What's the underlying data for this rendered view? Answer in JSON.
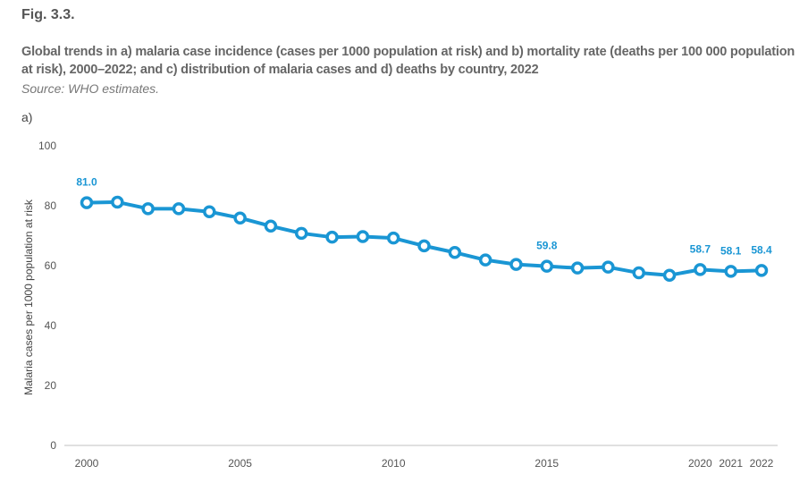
{
  "figure": {
    "label": "Fig. 3.3.",
    "title": "Global trends in a) malaria case incidence (cases per 1000 population at risk) and b) mortality rate (deaths per 100 000 population at risk), 2000–2022; and c) distribution of malaria cases and d) deaths by country, 2022",
    "source": "Source: WHO estimates.",
    "panel": "a)"
  },
  "colors": {
    "series": "#1a96d4",
    "axis": "#e0e0e0",
    "text": "#555555"
  },
  "chart_data": {
    "type": "line",
    "title": "",
    "xlabel": "",
    "ylabel": "Malaria cases per 1000 population at risk",
    "ylim": [
      0,
      100
    ],
    "yticks": [
      0,
      20,
      40,
      60,
      80,
      100
    ],
    "xticks": [
      2000,
      2005,
      2010,
      2015,
      2020,
      2021,
      2022
    ],
    "grid": false,
    "legend": "none",
    "x": [
      2000,
      2001,
      2002,
      2003,
      2004,
      2005,
      2006,
      2007,
      2008,
      2009,
      2010,
      2011,
      2012,
      2013,
      2014,
      2015,
      2016,
      2017,
      2018,
      2019,
      2020,
      2021,
      2022
    ],
    "series": [
      {
        "name": "Malaria case incidence",
        "values": [
          81.0,
          81.2,
          79.0,
          79.0,
          78.0,
          75.9,
          73.2,
          70.8,
          69.5,
          69.7,
          69.2,
          66.6,
          64.4,
          61.9,
          60.4,
          59.8,
          59.2,
          59.5,
          57.6,
          56.8,
          58.7,
          58.1,
          58.4
        ]
      }
    ],
    "annotations": [
      {
        "x": 2000,
        "label": "81.0"
      },
      {
        "x": 2015,
        "label": "59.8"
      },
      {
        "x": 2020,
        "label": "58.7"
      },
      {
        "x": 2021,
        "label": "58.1"
      },
      {
        "x": 2022,
        "label": "58.4"
      }
    ]
  }
}
